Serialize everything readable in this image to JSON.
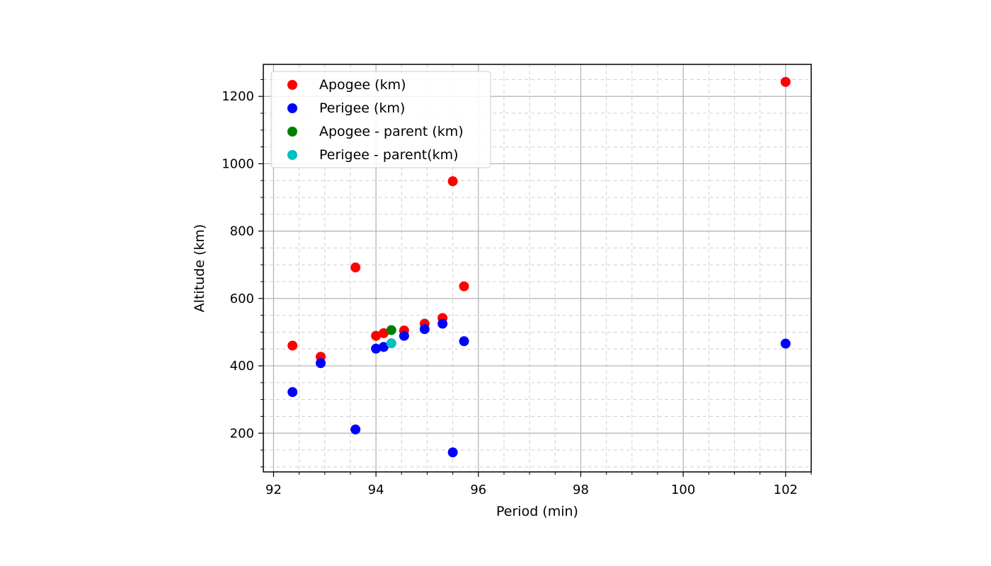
{
  "chart_data": {
    "type": "scatter",
    "title": "",
    "xlabel": "Period (min)",
    "ylabel": "Altitude (km)",
    "xlim": [
      91.8,
      102.5
    ],
    "ylim": [
      85,
      1295
    ],
    "x_ticks": [
      92,
      94,
      96,
      98,
      100,
      102
    ],
    "y_ticks": [
      200,
      400,
      600,
      800,
      1000,
      1200
    ],
    "x_minor_step": 0.5,
    "y_minor_step": 50,
    "grid": true,
    "legend_position": "upper-left",
    "series": [
      {
        "name": "Apogee (km)",
        "color": "#ff0000",
        "points": [
          [
            92.37,
            460
          ],
          [
            92.92,
            427
          ],
          [
            93.6,
            692
          ],
          [
            94.0,
            489
          ],
          [
            94.15,
            497
          ],
          [
            94.55,
            505
          ],
          [
            94.95,
            525
          ],
          [
            95.3,
            542
          ],
          [
            95.5,
            948
          ],
          [
            95.72,
            636
          ],
          [
            102.0,
            1243
          ]
        ]
      },
      {
        "name": "Perigee (km)",
        "color": "#0000ff",
        "points": [
          [
            92.37,
            322
          ],
          [
            92.92,
            408
          ],
          [
            93.6,
            211
          ],
          [
            94.0,
            451
          ],
          [
            94.15,
            456
          ],
          [
            94.55,
            489
          ],
          [
            94.95,
            509
          ],
          [
            95.3,
            525
          ],
          [
            95.5,
            143
          ],
          [
            95.72,
            473
          ],
          [
            102.0,
            466
          ]
        ]
      },
      {
        "name": "Apogee - parent (km)",
        "color": "#008000",
        "points": [
          [
            94.3,
            506
          ]
        ]
      },
      {
        "name": "Perigee - parent(km)",
        "color": "#00bfbf",
        "points": [
          [
            94.3,
            467
          ]
        ]
      }
    ]
  }
}
